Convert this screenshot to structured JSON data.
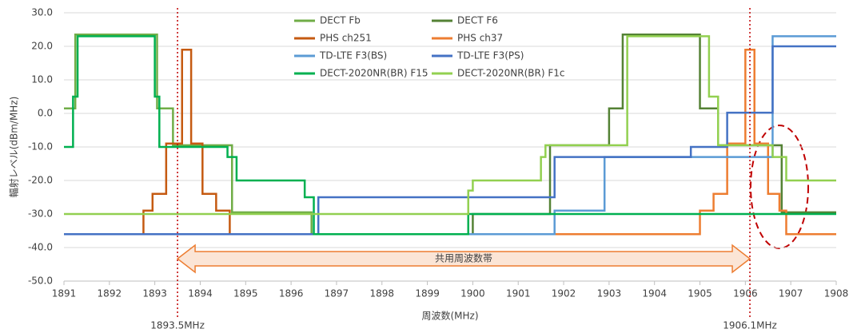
{
  "chart_data": {
    "type": "step",
    "ylabel": "輻射レベル(dBm/MHz)",
    "xlabel": "周波数(MHz)",
    "xlim": [
      1891,
      1908
    ],
    "xticks": [
      1891,
      1892,
      1893,
      1894,
      1895,
      1896,
      1897,
      1898,
      1899,
      1900,
      1901,
      1902,
      1903,
      1904,
      1905,
      1906,
      1907,
      1908
    ],
    "ylim": [
      -50,
      30
    ],
    "yticks": [
      {
        "value": -50,
        "label": "-50.0"
      },
      {
        "value": -40,
        "label": "-40.0"
      },
      {
        "value": -30,
        "label": "-30.0"
      },
      {
        "value": -20,
        "label": "-20.0"
      },
      {
        "value": -10,
        "label": "-10.0"
      },
      {
        "value": 0,
        "label": "0.0"
      },
      {
        "value": 10,
        "label": "10.0"
      },
      {
        "value": 20,
        "label": "20.0"
      },
      {
        "value": 30,
        "label": "30.0"
      }
    ],
    "grid": true,
    "band_label": "共用周波数帯",
    "vlines": [
      {
        "value": 1893.5,
        "label": "1893.5MHz"
      },
      {
        "value": 1906.1,
        "label": "1906.1MHz"
      }
    ],
    "series": [
      {
        "name": "DECT Fb",
        "color": "#70ad47",
        "x": [
          1891,
          1891.25,
          1893.05,
          1893.4,
          1894.7,
          1896.45,
          1897
        ],
        "values": [
          1.5,
          23.5,
          1.5,
          -9.5,
          -29.5,
          -36,
          -36
        ]
      },
      {
        "name": "DECT F6",
        "color": "#548235",
        "x": [
          1899.9,
          1900,
          1901.7,
          1903,
          1903.3,
          1905,
          1905.4,
          1906.8,
          1908
        ],
        "values": [
          -36,
          -30,
          -9.5,
          1.5,
          23.5,
          1.5,
          -9.5,
          -29.5,
          -29.5
        ]
      },
      {
        "name": "PHS ch251",
        "color": "#c55a11",
        "x": [
          1892.7,
          1892.75,
          1892.95,
          1893.25,
          1893.6,
          1893.8,
          1894.05,
          1894.35,
          1894.65,
          1894.7
        ],
        "values": [
          -36,
          -29,
          -24,
          -9,
          19,
          -9,
          -24,
          -29,
          -36,
          -36
        ]
      },
      {
        "name": "PHS ch37",
        "color": "#ed7d31",
        "x": [
          1901.8,
          1905.0,
          1905.3,
          1905.6,
          1906.0,
          1906.2,
          1906.5,
          1906.75,
          1906.9,
          1908
        ],
        "values": [
          -36,
          -29,
          -24,
          -9,
          19,
          -9,
          -24,
          -29,
          -36,
          -36
        ]
      },
      {
        "name": "TD-LTE F3(BS)",
        "color": "#5b9bd5",
        "x": [
          1891,
          1901.8,
          1902.9,
          1906.6,
          1908
        ],
        "values": [
          -36,
          -29,
          -13,
          23,
          23
        ]
      },
      {
        "name": "TD-LTE F3(PS)",
        "color": "#4472c4",
        "x": [
          1891,
          1896.6,
          1901.8,
          1904.8,
          1905.6,
          1906.6,
          1908
        ],
        "values": [
          -36,
          -25,
          -13,
          -10,
          0.2,
          20,
          20
        ]
      },
      {
        "name": "DECT-2020NR(BR) F15",
        "color": "#00b050",
        "x": [
          1891,
          1891.2,
          1891.3,
          1893.0,
          1893.1,
          1894.6,
          1894.8,
          1896.3,
          1896.5,
          1899.9,
          1908
        ],
        "values": [
          -10,
          5,
          23,
          5,
          -10,
          -13,
          -20,
          -25,
          -36,
          -30,
          -30
        ]
      },
      {
        "name": "DECT-2020NR(BR) F1c",
        "color": "#92d050",
        "x": [
          1891,
          1899.9,
          1900.0,
          1901.5,
          1901.6,
          1903.4,
          1905.2,
          1905.4,
          1906.6,
          1906.9,
          1908
        ],
        "values": [
          -30,
          -23,
          -20,
          -13,
          -9.5,
          23,
          5,
          -9.5,
          -13,
          -20,
          -20
        ]
      }
    ]
  }
}
